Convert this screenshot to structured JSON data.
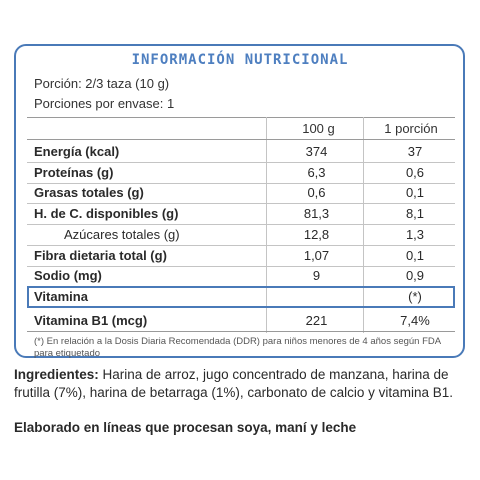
{
  "title": "INFORMACIÓN NUTRICIONAL",
  "serving": "Porción: 2/3 taza  (10 g)",
  "servings_per_container": "Porciones por envase: 1",
  "columns": [
    "100 g",
    "1 porción"
  ],
  "rows": [
    {
      "label": "Energía (kcal)",
      "per100": "374",
      "perServing": "37",
      "sub": false
    },
    {
      "label": "Proteínas (g)",
      "per100": "6,3",
      "perServing": "0,6",
      "sub": false
    },
    {
      "label": "Grasas totales (g)",
      "per100": "0,6",
      "perServing": "0,1",
      "sub": false
    },
    {
      "label": "H. de C. disponibles (g)",
      "per100": "81,3",
      "perServing": "8,1",
      "sub": false
    },
    {
      "label": "Azúcares totales (g)",
      "per100": "12,8",
      "perServing": "1,3",
      "sub": true
    },
    {
      "label": "Fibra dietaria total (g)",
      "per100": "1,07",
      "perServing": "0,1",
      "sub": false
    },
    {
      "label": "Sodio (mg)",
      "per100": "9",
      "perServing": "0,9",
      "sub": false
    }
  ],
  "vitamin_header": {
    "label": "Vitamina",
    "note": "(*)"
  },
  "vitamin_row": {
    "label": "Vitamina B1 (mcg)",
    "per100": "221",
    "perServing": "7,4%"
  },
  "footnote": "(*) En relación a la Dosis Diaria Recomendada (DDR) para niños menores de 4 años según FDA para etiquetado",
  "ingredients_label": "Ingredientes:",
  "ingredients_text": " Harina de arroz, jugo concentrado de manzana, harina de frutilla (7%), harina de betarraga (1%), carbonato de calcio y vitamina B1.",
  "allergen_text": "Elaborado en líneas que procesan soya, maní y leche",
  "colors": {
    "border": "#4a7ab8",
    "title": "#4e7fc0"
  }
}
